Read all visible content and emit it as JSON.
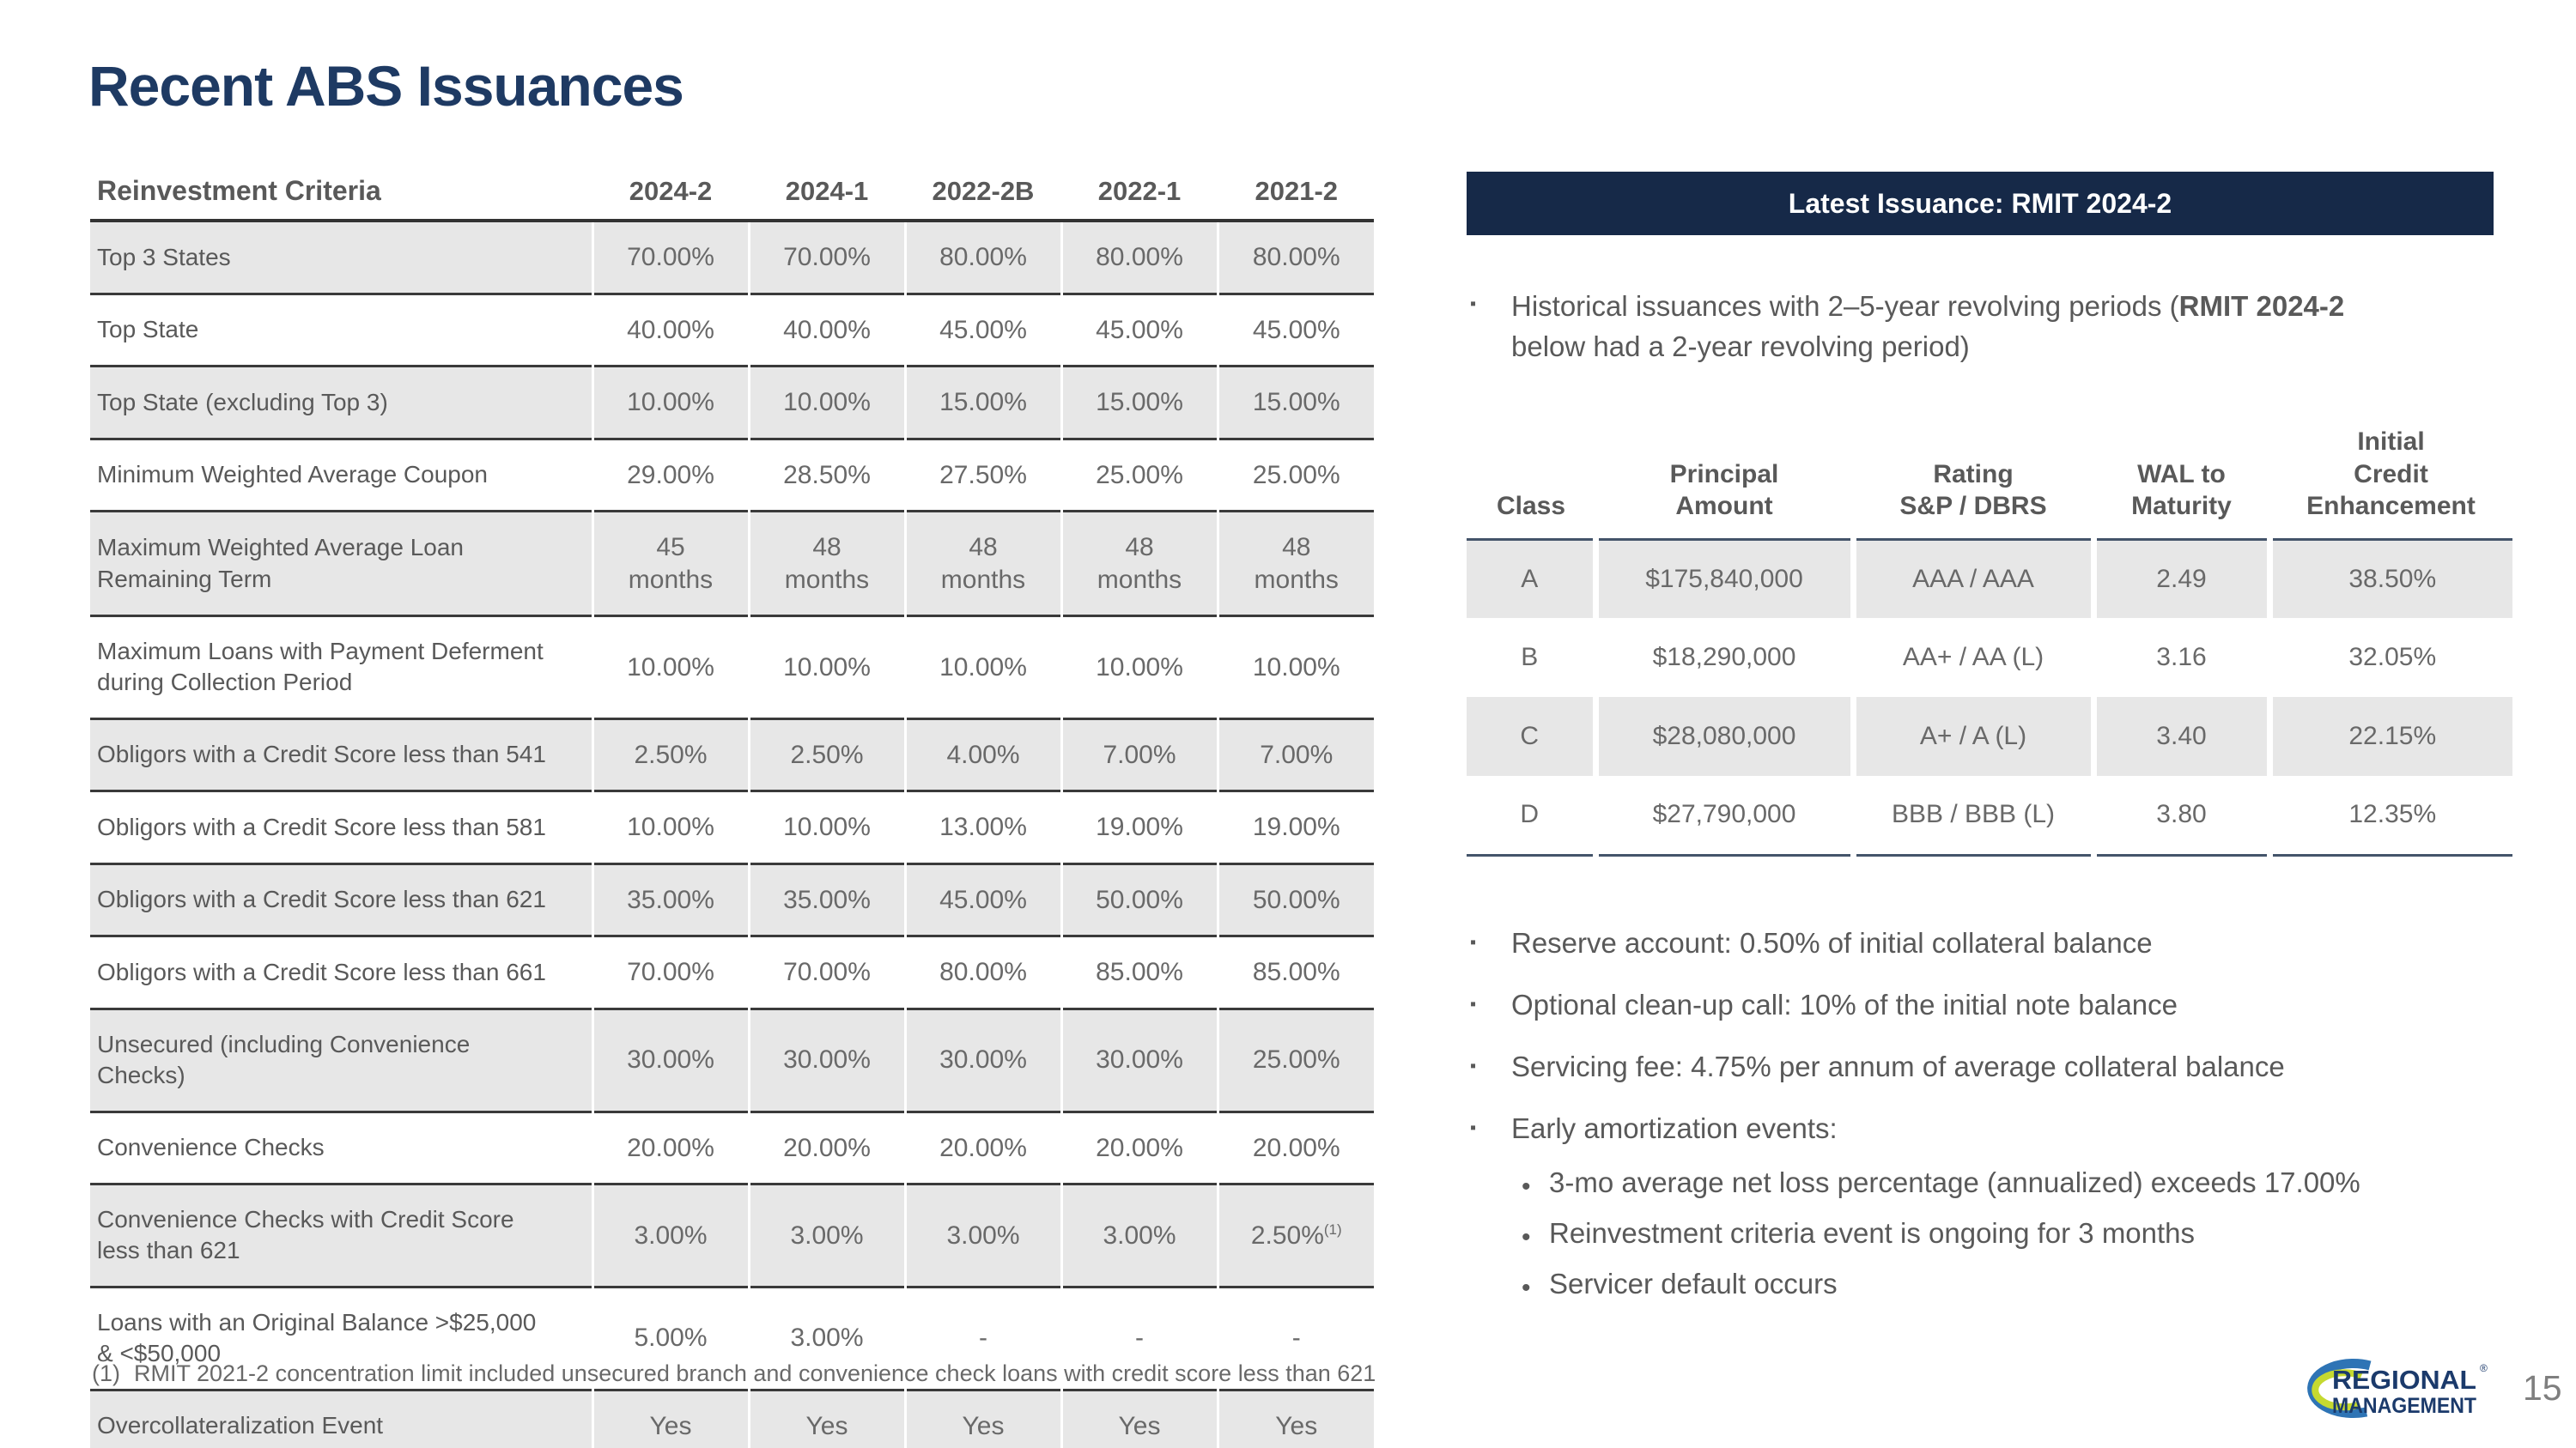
{
  "slide": {
    "title": "Recent ABS Issuances",
    "page_number": "15",
    "footnote": {
      "marker": "(1)",
      "text": "RMIT 2021-2 concentration limit included unsecured branch and convenience check loans with credit score less than 621"
    }
  },
  "colors": {
    "title_navy": "#1E3A63",
    "band_navy": "#162948",
    "row_shade": "#E7E7E7",
    "label_gray": "#595959",
    "value_gray": "#696969",
    "border_dark": "#333333",
    "table_rule_navy": "#44546A",
    "logo_navy": "#1B3A6B",
    "logo_blue": "#2E74B5",
    "logo_green": "#C5D930",
    "page_gray": "#7F7F7F"
  },
  "criteria_table": {
    "title_header": "Reinvestment Criteria",
    "year_columns": [
      "2024-2",
      "2024-1",
      "2022-2B",
      "2022-1",
      "2021-2"
    ],
    "rows": [
      {
        "label": "Top 3 States",
        "values": [
          "70.00%",
          "70.00%",
          "80.00%",
          "80.00%",
          "80.00%"
        ]
      },
      {
        "label": "Top State",
        "values": [
          "40.00%",
          "40.00%",
          "45.00%",
          "45.00%",
          "45.00%"
        ]
      },
      {
        "label": "Top State (excluding Top 3)",
        "values": [
          "10.00%",
          "10.00%",
          "15.00%",
          "15.00%",
          "15.00%"
        ]
      },
      {
        "label": "Minimum Weighted Average Coupon",
        "values": [
          "29.00%",
          "28.50%",
          "27.50%",
          "25.00%",
          "25.00%"
        ]
      },
      {
        "label": "Maximum Weighted Average Loan\nRemaining Term",
        "values": [
          "45\nmonths",
          "48\nmonths",
          "48\nmonths",
          "48\nmonths",
          "48\nmonths"
        ]
      },
      {
        "label": "Maximum Loans with Payment Deferment\nduring Collection Period",
        "values": [
          "10.00%",
          "10.00%",
          "10.00%",
          "10.00%",
          "10.00%"
        ]
      },
      {
        "label": "Obligors with a Credit Score less than 541",
        "values": [
          "2.50%",
          "2.50%",
          "4.00%",
          "7.00%",
          "7.00%"
        ]
      },
      {
        "label": "Obligors with a Credit Score less than 581",
        "values": [
          "10.00%",
          "10.00%",
          "13.00%",
          "19.00%",
          "19.00%"
        ]
      },
      {
        "label": "Obligors with a Credit Score less than 621",
        "values": [
          "35.00%",
          "35.00%",
          "45.00%",
          "50.00%",
          "50.00%"
        ]
      },
      {
        "label": "Obligors with a Credit Score less than 661",
        "values": [
          "70.00%",
          "70.00%",
          "80.00%",
          "85.00%",
          "85.00%"
        ]
      },
      {
        "label": "Unsecured (including Convenience\nChecks)",
        "values": [
          "30.00%",
          "30.00%",
          "30.00%",
          "30.00%",
          "25.00%"
        ]
      },
      {
        "label": "Convenience Checks",
        "values": [
          "20.00%",
          "20.00%",
          "20.00%",
          "20.00%",
          "20.00%"
        ]
      },
      {
        "label": "Convenience Checks with Credit Score\nless than 621",
        "values": [
          "3.00%",
          "3.00%",
          "3.00%",
          "3.00%",
          "2.50%"
        ],
        "footnote_marker": "(1)"
      },
      {
        "label": "Loans with an Original Balance >$25,000\n& <$50,000",
        "values": [
          "5.00%",
          "3.00%",
          "-",
          "-",
          "-"
        ]
      },
      {
        "label": "Overcollateralization Event",
        "values": [
          "Yes",
          "Yes",
          "Yes",
          "Yes",
          "Yes"
        ]
      }
    ]
  },
  "issuance_panel": {
    "band_title": "Latest Issuance: RMIT 2024-2",
    "bullet_glyph": "▪",
    "sub_bullet_glyph": "•",
    "intro_bullet": {
      "pre": "Historical issuances with 2–5-year revolving periods (",
      "bold": "RMIT 2024-2",
      "post": " below had a 2-year revolving period)"
    },
    "table": {
      "columns": [
        "Class",
        "Principal\nAmount",
        "Rating\nS&P / DBRS",
        "WAL to\nMaturity",
        "Initial\nCredit Enhancement"
      ],
      "rows": [
        {
          "class_name": "A",
          "principal_amount": "$175,840,000",
          "rating": "AAA / AAA",
          "wal_to_maturity": "2.49",
          "initial_credit_enhancement": "38.50%"
        },
        {
          "class_name": "B",
          "principal_amount": "$18,290,000",
          "rating": "AA+ / AA (L)",
          "wal_to_maturity": "3.16",
          "initial_credit_enhancement": "32.05%"
        },
        {
          "class_name": "C",
          "principal_amount": "$28,080,000",
          "rating": "A+ / A (L)",
          "wal_to_maturity": "3.40",
          "initial_credit_enhancement": "22.15%"
        },
        {
          "class_name": "D",
          "principal_amount": "$27,790,000",
          "rating": "BBB / BBB (L)",
          "wal_to_maturity": "3.80",
          "initial_credit_enhancement": "12.35%"
        }
      ]
    },
    "bullets": [
      {
        "text": "Reserve account: 0.50% of initial collateral balance"
      },
      {
        "text": "Optional clean-up call: 10% of the initial note balance"
      },
      {
        "text": "Servicing fee: 4.75% per annum of average collateral balance"
      },
      {
        "text": "Early amortization events:",
        "subs": [
          "3-mo average net loss percentage (annualized) exceeds 17.00%",
          "Reinvestment criteria event is ongoing for 3 months",
          "Servicer default occurs"
        ]
      }
    ]
  },
  "logo": {
    "line1": "REGIONAL",
    "line2": "MANAGEMENT",
    "reg_mark": "®"
  }
}
